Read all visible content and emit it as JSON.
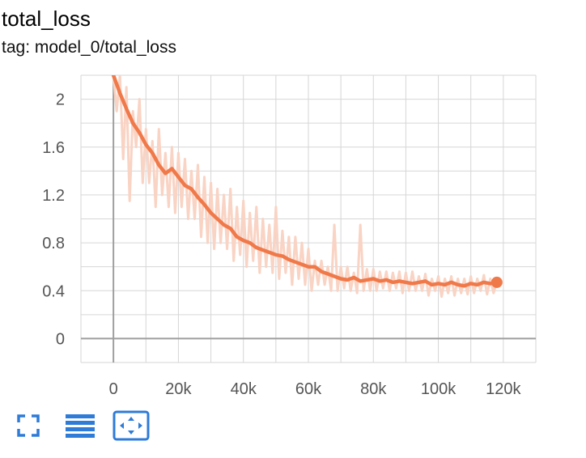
{
  "card": {
    "title": "total_loss",
    "tag": "tag: model_0/total_loss"
  },
  "toolbar": {
    "buttons": [
      {
        "icon": "fullscreen-icon"
      },
      {
        "icon": "log-scale-icon"
      },
      {
        "icon": "fit-domain-icon"
      }
    ],
    "accent": "#2e7bd8"
  },
  "colors": {
    "smoothed": "#f0794a",
    "raw": "#f9d3c3",
    "grid": "#d6d6d6",
    "zero_line": "#9e9e9e"
  },
  "chart_data": {
    "type": "line",
    "title": "total_loss",
    "xlabel": "",
    "ylabel": "",
    "xlim": [
      -10000,
      130000
    ],
    "ylim": [
      -0.2,
      2.2
    ],
    "x_ticks": [
      0,
      20000,
      40000,
      60000,
      80000,
      100000,
      120000
    ],
    "x_tick_labels": [
      "0",
      "20k",
      "40k",
      "60k",
      "80k",
      "100k",
      "120k"
    ],
    "y_ticks": [
      0,
      0.4,
      0.8,
      1.2,
      1.6,
      2
    ],
    "y_tick_labels": [
      "0",
      "0.4",
      "0.8",
      "1.2",
      "1.6",
      "2"
    ],
    "grid": true,
    "series": [
      {
        "role": "smoothed",
        "x": [
          0,
          2000,
          4000,
          6000,
          8000,
          10000,
          12000,
          14000,
          16000,
          18000,
          20000,
          22000,
          24000,
          26000,
          28000,
          30000,
          32000,
          34000,
          36000,
          38000,
          40000,
          42000,
          44000,
          46000,
          48000,
          50000,
          52000,
          54000,
          56000,
          58000,
          60000,
          62000,
          64000,
          66000,
          68000,
          70000,
          72000,
          74000,
          76000,
          78000,
          80000,
          82000,
          84000,
          86000,
          88000,
          90000,
          92000,
          94000,
          96000,
          98000,
          100000,
          102000,
          104000,
          106000,
          108000,
          110000,
          112000,
          114000,
          116000,
          118000
        ],
        "values": [
          2.2,
          2.05,
          1.92,
          1.8,
          1.72,
          1.62,
          1.55,
          1.45,
          1.38,
          1.42,
          1.35,
          1.28,
          1.25,
          1.18,
          1.12,
          1.05,
          1.0,
          0.95,
          0.92,
          0.85,
          0.82,
          0.8,
          0.76,
          0.74,
          0.72,
          0.7,
          0.69,
          0.66,
          0.64,
          0.62,
          0.6,
          0.6,
          0.56,
          0.54,
          0.52,
          0.5,
          0.49,
          0.51,
          0.48,
          0.49,
          0.5,
          0.48,
          0.49,
          0.47,
          0.48,
          0.47,
          0.46,
          0.47,
          0.48,
          0.45,
          0.46,
          0.45,
          0.47,
          0.45,
          0.44,
          0.46,
          0.45,
          0.47,
          0.46,
          0.47
        ]
      },
      {
        "role": "raw",
        "x": [
          0,
          1000,
          2000,
          3000,
          4000,
          5000,
          6000,
          7000,
          8000,
          9000,
          10000,
          11000,
          12000,
          13000,
          14000,
          15000,
          16000,
          17000,
          18000,
          19000,
          20000,
          21000,
          22000,
          23000,
          24000,
          25000,
          26000,
          27000,
          28000,
          29000,
          30000,
          31000,
          32000,
          33000,
          34000,
          35000,
          36000,
          37000,
          38000,
          39000,
          40000,
          41000,
          42000,
          43000,
          44000,
          45000,
          46000,
          47000,
          48000,
          49000,
          50000,
          51000,
          52000,
          53000,
          54000,
          55000,
          56000,
          57000,
          58000,
          59000,
          60000,
          61000,
          62000,
          63000,
          64000,
          65000,
          66000,
          67000,
          68000,
          69000,
          70000,
          71000,
          72000,
          73000,
          74000,
          75000,
          76000,
          77000,
          78000,
          79000,
          80000,
          81000,
          82000,
          83000,
          84000,
          85000,
          86000,
          87000,
          88000,
          89000,
          90000,
          91000,
          92000,
          93000,
          94000,
          95000,
          96000,
          97000,
          98000,
          99000,
          100000,
          101000,
          102000,
          103000,
          104000,
          105000,
          106000,
          107000,
          108000,
          109000,
          110000,
          111000,
          112000,
          113000,
          114000,
          115000,
          116000,
          117000,
          118000
        ],
        "values": [
          2.2,
          1.9,
          2.2,
          1.5,
          2.1,
          1.15,
          1.9,
          1.6,
          2.0,
          1.3,
          1.75,
          1.3,
          1.65,
          1.1,
          1.75,
          1.2,
          1.55,
          1.1,
          1.6,
          1.05,
          1.55,
          1.1,
          1.5,
          1.0,
          1.4,
          1.0,
          1.45,
          0.85,
          1.35,
          0.8,
          1.3,
          0.75,
          1.25,
          0.8,
          1.2,
          0.75,
          1.25,
          0.65,
          1.1,
          0.7,
          1.15,
          0.6,
          1.05,
          0.65,
          1.1,
          0.55,
          1.0,
          0.6,
          0.95,
          0.55,
          1.1,
          0.5,
          0.9,
          0.55,
          0.85,
          0.45,
          0.85,
          0.5,
          0.8,
          0.45,
          0.75,
          0.4,
          0.65,
          0.45,
          0.65,
          0.45,
          0.6,
          0.4,
          0.95,
          0.4,
          0.6,
          0.42,
          0.6,
          0.4,
          0.55,
          0.38,
          0.95,
          0.4,
          0.58,
          0.4,
          0.58,
          0.4,
          0.56,
          0.42,
          0.56,
          0.4,
          0.55,
          0.42,
          0.56,
          0.38,
          0.55,
          0.4,
          0.56,
          0.4,
          0.52,
          0.4,
          0.54,
          0.36,
          0.5,
          0.4,
          0.52,
          0.35,
          0.5,
          0.38,
          0.52,
          0.36,
          0.5,
          0.38,
          0.5,
          0.37,
          0.52,
          0.38,
          0.5,
          0.4,
          0.53,
          0.37,
          0.5,
          0.38,
          0.48
        ]
      }
    ],
    "last_point": {
      "x": 118000,
      "y": 0.47
    }
  }
}
